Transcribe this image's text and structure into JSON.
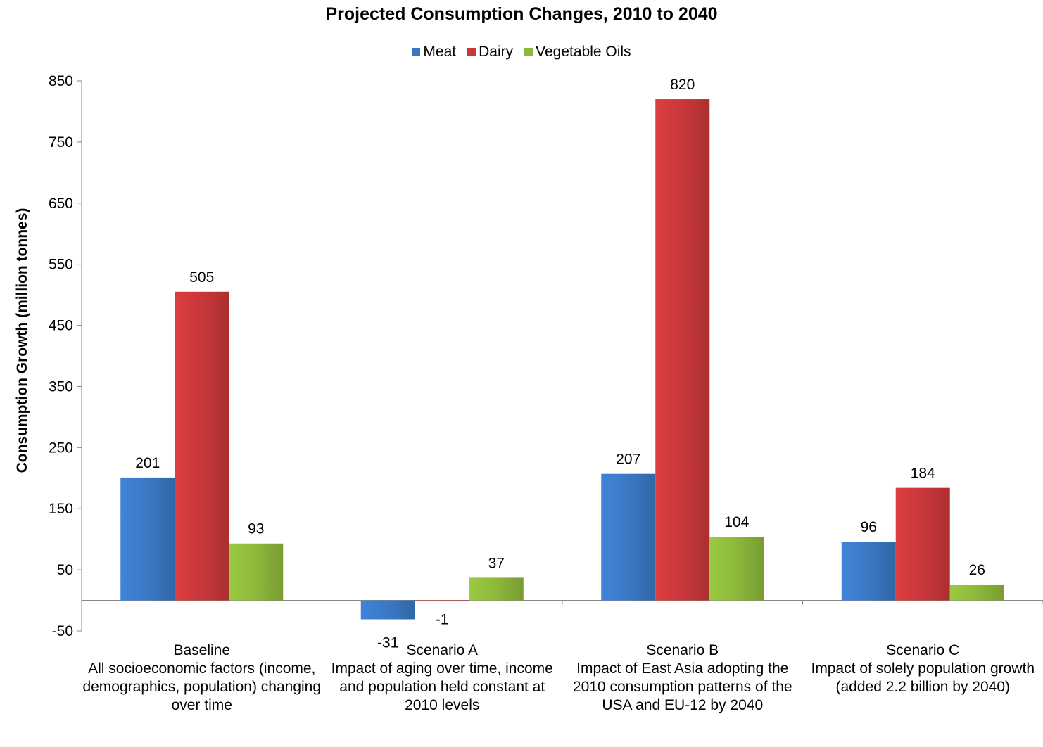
{
  "chart_data": {
    "type": "bar",
    "title": "Projected Consumption Changes, 2010 to 2040",
    "xlabel": "",
    "ylabel": "Consumption Growth (million tonnes)",
    "ylim": [
      -50,
      850
    ],
    "yticks": [
      -50,
      50,
      150,
      250,
      350,
      450,
      550,
      650,
      750,
      850
    ],
    "legend_position": "top",
    "categories": [
      "Baseline\nAll socioeconomic factors (income, demographics, population) changing over time",
      "Scenario A\nImpact of aging over time, income and population held constant at 2010 levels",
      "Scenario B\nImpact of East Asia adopting the 2010 consumption patterns of the USA and EU-12 by 2040",
      "Scenario C\nImpact of solely population growth (added 2.2 billion by 2040)"
    ],
    "series": [
      {
        "name": "Meat",
        "color": "#3A78C4",
        "values": [
          201,
          -31,
          207,
          96
        ]
      },
      {
        "name": "Dairy",
        "color": "#C8373A",
        "values": [
          505,
          -1,
          820,
          184
        ]
      },
      {
        "name": "Vegetable Oils",
        "color": "#8DB83A",
        "values": [
          93,
          37,
          104,
          26
        ]
      }
    ]
  }
}
